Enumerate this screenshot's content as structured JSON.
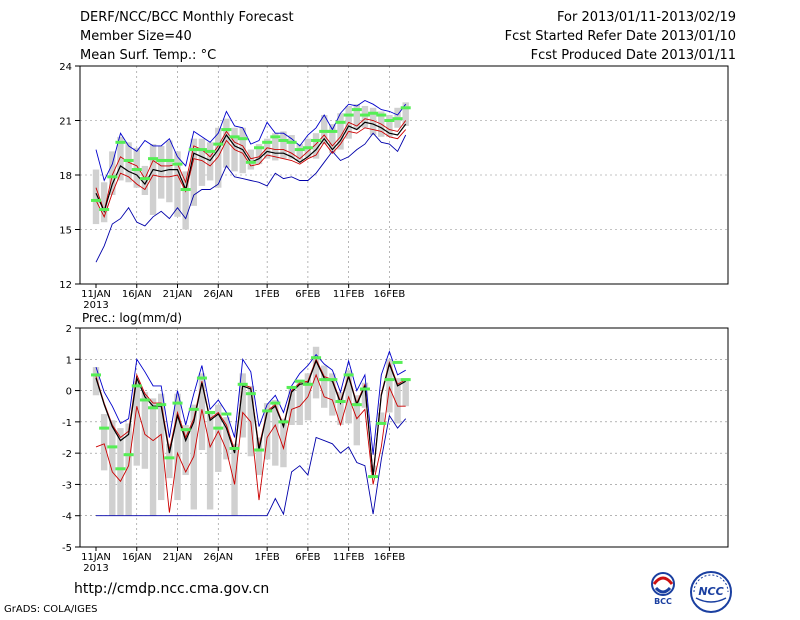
{
  "header": {
    "title": "DERF/NCC/BCC Monthly Forecast",
    "member_size": "Member Size=40",
    "variable": "Mean Surf. Temp.: °C",
    "period": "For 2013/01/11-2013/02/19",
    "started": "Fcst Started Refer Date 2013/01/10",
    "produced": "Fcst Produced Date 2013/01/11"
  },
  "footer": {
    "url": "http://cmdp.ncc.cma.gov.cn",
    "credit": "GrADS: COLA/IGES",
    "logo_left_text": "BCC",
    "logo_right_text": "NCC"
  },
  "colors": {
    "max_line": "#0000cc",
    "min_line": "#0000aa",
    "mean_line": "#000000",
    "spread_line": "#cc0000",
    "box": "#d0d0d0",
    "obs_marker": "#55ee55",
    "grid": "#888888"
  },
  "chart_data": [
    {
      "type": "line",
      "title": "Mean Surf. Temp.: °C",
      "ylim": [
        12,
        24
      ],
      "yticks": [
        "12",
        "15",
        "18",
        "21",
        "24"
      ],
      "xtick_labels": [
        "11JAN",
        "16JAN",
        "21JAN",
        "26JAN",
        "1FEB",
        "6FEB",
        "11FEB",
        "16FEB"
      ],
      "xtick_year": "2013",
      "days": 39,
      "series": [
        {
          "name": "max",
          "values": [
            19.4,
            17.7,
            18.6,
            20.3,
            19.6,
            19.3,
            19.9,
            19.6,
            19.6,
            20.0,
            19.0,
            18.5,
            20.4,
            20.1,
            19.8,
            20.3,
            21.5,
            20.7,
            20.6,
            19.7,
            19.9,
            20.9,
            20.3,
            20.3,
            20.0,
            19.6,
            20.2,
            20.6,
            21.3,
            20.5,
            21.4,
            21.9,
            21.8,
            22.1,
            21.9,
            21.6,
            21.5,
            21.3,
            21.9
          ]
        },
        {
          "name": "upper",
          "values": [
            17.3,
            16.0,
            18.0,
            19.0,
            18.7,
            18.5,
            17.8,
            18.8,
            18.5,
            18.5,
            18.6,
            17.6,
            19.6,
            19.4,
            19.0,
            19.6,
            20.4,
            19.8,
            19.6,
            18.9,
            19.0,
            19.5,
            19.4,
            19.4,
            19.2,
            18.9,
            19.3,
            19.7,
            20.2,
            19.6,
            20.1,
            20.9,
            20.7,
            21.1,
            21.0,
            20.8,
            20.5,
            20.4,
            21.0
          ]
        },
        {
          "name": "mean",
          "values": [
            17.0,
            16.0,
            17.5,
            18.5,
            18.2,
            18.0,
            17.5,
            18.3,
            18.2,
            18.3,
            18.3,
            17.2,
            19.2,
            19.0,
            18.8,
            19.4,
            20.2,
            19.6,
            19.4,
            18.7,
            18.9,
            19.3,
            19.2,
            19.2,
            19.0,
            18.7,
            19.0,
            19.4,
            20.0,
            19.4,
            19.9,
            20.7,
            20.5,
            20.9,
            20.8,
            20.6,
            20.3,
            20.2,
            20.8
          ]
        },
        {
          "name": "lower",
          "values": [
            16.6,
            15.7,
            17.0,
            18.1,
            17.9,
            17.5,
            17.2,
            18.0,
            17.9,
            17.9,
            18.0,
            17.1,
            18.9,
            18.8,
            18.5,
            19.0,
            19.9,
            19.4,
            19.2,
            18.5,
            18.6,
            19.1,
            19.0,
            18.9,
            18.8,
            18.6,
            18.9,
            19.1,
            19.8,
            19.2,
            19.7,
            20.4,
            20.3,
            20.6,
            20.5,
            20.4,
            20.1,
            20.0,
            20.5
          ]
        },
        {
          "name": "min",
          "values": [
            13.2,
            14.1,
            15.3,
            15.6,
            16.2,
            15.4,
            15.2,
            15.7,
            16.0,
            15.6,
            16.2,
            15.6,
            16.9,
            17.2,
            17.2,
            17.5,
            18.5,
            17.9,
            17.8,
            17.7,
            17.6,
            17.4,
            18.1,
            17.8,
            17.9,
            17.7,
            17.7,
            18.1,
            18.7,
            19.3,
            18.8,
            19.0,
            19.4,
            19.7,
            20.3,
            19.8,
            19.7,
            19.3,
            20.2
          ]
        },
        {
          "name": "box_low",
          "values": [
            15.3,
            15.4,
            16.9,
            17.7,
            17.6,
            17.3,
            16.9,
            15.8,
            16.7,
            16.5,
            15.7,
            15.0,
            16.3,
            17.4,
            17.7,
            17.3,
            18.4,
            18.2,
            18.1,
            18.3,
            18.6,
            18.9,
            18.8,
            18.9,
            18.9,
            18.8,
            19.0,
            18.9,
            19.7,
            19.2,
            19.4,
            20.0,
            20.5,
            20.6,
            20.2,
            20.1,
            20.1,
            20.6,
            20.7
          ]
        },
        {
          "name": "box_high",
          "values": [
            18.3,
            17.6,
            19.3,
            20.1,
            19.8,
            19.5,
            18.5,
            19.7,
            19.6,
            19.9,
            19.3,
            18.2,
            20.0,
            20.0,
            19.8,
            20.6,
            21.1,
            20.6,
            20.6,
            19.4,
            19.7,
            20.0,
            20.3,
            20.4,
            20.2,
            19.7,
            20.0,
            20.3,
            21.3,
            20.8,
            21.4,
            21.8,
            21.9,
            21.8,
            21.7,
            21.5,
            21.3,
            21.7,
            22.0
          ]
        },
        {
          "name": "obs",
          "values": [
            16.6,
            16.1,
            17.9,
            19.8,
            18.8,
            18.3,
            17.8,
            18.9,
            18.8,
            18.8,
            18.6,
            17.2,
            19.4,
            19.4,
            19.3,
            19.7,
            20.5,
            20.1,
            20.0,
            18.7,
            19.5,
            19.8,
            20.1,
            19.9,
            19.8,
            19.4,
            19.5,
            19.9,
            20.4,
            20.4,
            20.9,
            21.3,
            21.6,
            21.3,
            21.4,
            21.3,
            21.0,
            21.1,
            21.7
          ]
        }
      ]
    },
    {
      "type": "line",
      "title": "Prec.: log(mm/d)",
      "ylim": [
        -5,
        2
      ],
      "yticks": [
        "-5",
        "-4",
        "-3",
        "-2",
        "-1",
        "0",
        "1",
        "2"
      ],
      "xtick_labels": [
        "11JAN",
        "16JAN",
        "21JAN",
        "26JAN",
        "1FEB",
        "6FEB",
        "11FEB",
        "16FEB"
      ],
      "xtick_year": "2013",
      "days": 39,
      "series": [
        {
          "name": "max",
          "values": [
            0.75,
            -0.05,
            -0.5,
            -1.05,
            -0.9,
            1.0,
            0.6,
            0.15,
            0.15,
            -1.5,
            0.0,
            -1.1,
            -0.1,
            0.8,
            -0.6,
            -0.3,
            -0.7,
            -1.5,
            1.0,
            0.6,
            -1.15,
            -0.45,
            -0.15,
            -0.7,
            0.15,
            0.55,
            0.8,
            1.15,
            0.85,
            0.65,
            -0.05,
            0.95,
            0.0,
            0.5,
            -2.05,
            0.5,
            1.25,
            0.5,
            0.65
          ]
        },
        {
          "name": "upper",
          "values": [
            0.45,
            -0.4,
            -1.1,
            -1.5,
            -1.3,
            0.5,
            -0.1,
            -0.4,
            -0.4,
            -1.9,
            -0.7,
            -1.5,
            -0.9,
            0.3,
            -0.9,
            -0.7,
            -1.1,
            -1.9,
            0.2,
            0.1,
            -1.8,
            -0.65,
            -0.45,
            -1.1,
            0.0,
            0.25,
            0.3,
            1.0,
            0.45,
            0.35,
            -0.35,
            0.5,
            -0.4,
            0.2,
            -2.7,
            -0.1,
            0.9,
            0.2,
            0.35
          ]
        },
        {
          "name": "mean",
          "values": [
            0.4,
            -0.45,
            -1.15,
            -1.6,
            -1.4,
            0.4,
            -0.2,
            -0.5,
            -0.5,
            -2.0,
            -0.8,
            -1.6,
            -1.0,
            0.25,
            -0.95,
            -0.75,
            -1.2,
            -2.0,
            0.15,
            0.05,
            -1.9,
            -0.7,
            -0.5,
            -1.15,
            -0.05,
            0.2,
            0.25,
            0.95,
            0.4,
            0.3,
            -0.4,
            0.45,
            -0.45,
            0.15,
            -2.75,
            -0.15,
            0.85,
            0.15,
            0.3
          ]
        },
        {
          "name": "lower",
          "values": [
            -1.8,
            -1.7,
            -2.6,
            -2.9,
            -2.4,
            -0.5,
            -1.4,
            -1.6,
            -1.4,
            -3.9,
            -2.0,
            -2.6,
            -2.1,
            -0.6,
            -1.8,
            -1.3,
            -1.9,
            -3.0,
            -0.7,
            -1.0,
            -3.5,
            -1.5,
            -1.1,
            -1.85,
            -0.6,
            -0.5,
            -0.2,
            0.5,
            -0.2,
            -0.3,
            -1.1,
            -0.2,
            -0.9,
            -0.6,
            -3.0,
            -1.8,
            0.1,
            -0.5,
            -0.5
          ]
        },
        {
          "name": "min",
          "values": [
            -4,
            -4,
            -4,
            -4,
            -4,
            -4,
            -4,
            -4,
            -4,
            -4,
            -4,
            -4,
            -4,
            -4,
            -4,
            -4,
            -4,
            -4,
            -4,
            -4,
            -4,
            -4,
            -3.45,
            -3.95,
            -2.6,
            -2.4,
            -2.7,
            -1.5,
            -1.6,
            -1.7,
            -2.0,
            -1.8,
            -2.3,
            -2.4,
            -3.95,
            -2.2,
            -0.8,
            -1.2,
            -0.9
          ]
        },
        {
          "name": "box_low",
          "values": [
            -0.15,
            -2.55,
            -4.0,
            -4.0,
            -4.0,
            -2.4,
            -2.5,
            -4.0,
            -3.5,
            -2.8,
            -3.5,
            -2.7,
            -3.8,
            -1.9,
            -3.8,
            -2.6,
            -2.2,
            -4.0,
            -1.5,
            -2.1,
            -2.7,
            -2.2,
            -2.4,
            -2.45,
            -1.1,
            -1.1,
            -0.95,
            -0.25,
            -0.55,
            -0.8,
            -1.1,
            -1.05,
            -1.75,
            -0.55,
            -2.6,
            -1.0,
            -0.7,
            -1.05,
            -0.5
          ]
        },
        {
          "name": "box_high",
          "values": [
            0.75,
            -0.75,
            -0.95,
            -1.2,
            -1.05,
            0.3,
            -0.05,
            -0.25,
            -0.1,
            -1.7,
            -0.1,
            -1.1,
            -0.45,
            0.55,
            -0.7,
            -0.45,
            -0.85,
            -1.7,
            0.55,
            0.15,
            -1.5,
            -0.4,
            -0.3,
            -0.9,
            0.1,
            0.35,
            0.55,
            1.4,
            0.8,
            0.55,
            -0.05,
            0.65,
            -0.15,
            0.25,
            -2.4,
            -0.7,
            1.0,
            0.4,
            0.4
          ]
        },
        {
          "name": "obs",
          "values": [
            0.5,
            -1.2,
            -1.8,
            -2.5,
            -2.05,
            0.15,
            -0.3,
            -0.55,
            -0.45,
            -2.15,
            -0.4,
            -1.25,
            -0.6,
            0.4,
            -0.7,
            -1.2,
            -0.75,
            -1.85,
            0.2,
            -0.1,
            -1.9,
            -0.65,
            -0.4,
            -1.0,
            0.1,
            0.3,
            0.2,
            1.05,
            0.35,
            0.35,
            -0.35,
            0.5,
            -0.45,
            0.05,
            -2.75,
            -1.05,
            0.35,
            0.9,
            0.35
          ]
        }
      ]
    }
  ]
}
